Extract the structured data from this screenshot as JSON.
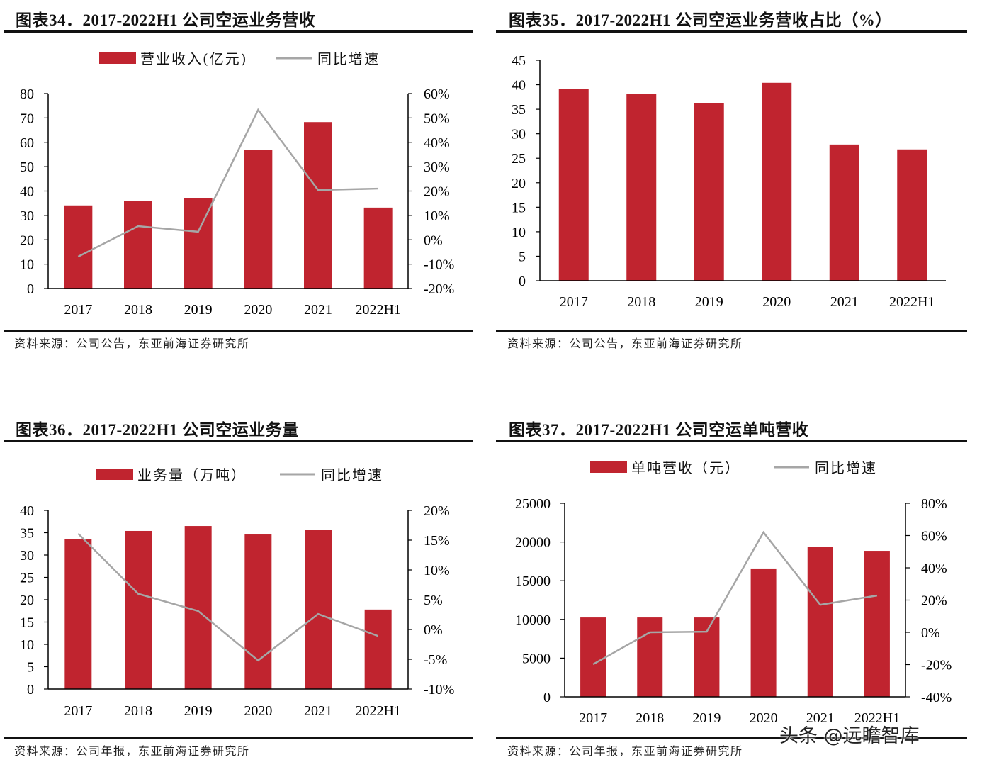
{
  "colors": {
    "bar": "#C0242F",
    "line": "#A6A6A6",
    "axis": "#000000"
  },
  "watermark": "头条 @远瞻智库",
  "chart_data": [
    {
      "id": "fig34",
      "type": "bar+line",
      "title": "图表34．2017-2022H1 公司空运业务营收",
      "source": "资料来源：公司公告，东亚前海证券研究所",
      "categories": [
        "2017",
        "2018",
        "2019",
        "2020",
        "2021",
        "2022H1"
      ],
      "series": [
        {
          "name": "营业收入(亿元)",
          "type": "bar",
          "axis": "left",
          "values": [
            34.1,
            35.8,
            37.2,
            57.0,
            68.3,
            33.2
          ]
        },
        {
          "name": "同比增速",
          "type": "line",
          "axis": "right",
          "values": [
            -6.9,
            5.6,
            3.3,
            53.3,
            20.4,
            21.0
          ]
        }
      ],
      "left_axis": {
        "ylim": [
          0,
          80
        ],
        "ticks": [
          "0",
          "10",
          "20",
          "30",
          "40",
          "50",
          "60",
          "70",
          "80"
        ]
      },
      "right_axis": {
        "ylim": [
          -20,
          60
        ],
        "unit": "%",
        "ticks": [
          "-20%",
          "-10%",
          "0%",
          "10%",
          "20%",
          "30%",
          "40%",
          "50%",
          "60%"
        ]
      },
      "legend": "top",
      "grid": false
    },
    {
      "id": "fig35",
      "type": "bar",
      "title": "图表35．2017-2022H1 公司空运业务营收占比（%）",
      "source": "资料来源：公司公告，东亚前海证券研究所",
      "categories": [
        "2017",
        "2018",
        "2019",
        "2020",
        "2021",
        "2022H1"
      ],
      "series": [
        {
          "type": "bar",
          "axis": "left",
          "values": [
            39.1,
            38.1,
            36.2,
            40.4,
            27.8,
            26.8
          ]
        }
      ],
      "left_axis": {
        "ylim": [
          0,
          45
        ],
        "ticks": [
          "0",
          "5",
          "10",
          "15",
          "20",
          "25",
          "30",
          "35",
          "40",
          "45"
        ]
      },
      "legend": "none",
      "grid": false
    },
    {
      "id": "fig36",
      "type": "bar+line",
      "title": "图表36．2017-2022H1 公司空运业务量",
      "source": "资料来源：公司年报，东亚前海证券研究所",
      "categories": [
        "2017",
        "2018",
        "2019",
        "2020",
        "2021",
        "2022H1"
      ],
      "series": [
        {
          "name": "业务量（万吨）",
          "type": "bar",
          "axis": "left",
          "values": [
            33.5,
            35.4,
            36.5,
            34.6,
            35.6,
            17.8
          ]
        },
        {
          "name": "同比增速",
          "type": "line",
          "axis": "right",
          "values": [
            16.1,
            6.0,
            3.1,
            -5.2,
            2.6,
            -1.1
          ]
        }
      ],
      "left_axis": {
        "ylim": [
          0,
          40
        ],
        "ticks": [
          "0",
          "5",
          "10",
          "15",
          "20",
          "25",
          "30",
          "35",
          "40"
        ]
      },
      "right_axis": {
        "ylim": [
          -10,
          20
        ],
        "unit": "%",
        "ticks": [
          "-10%",
          "-5%",
          "0%",
          "5%",
          "10%",
          "15%",
          "20%"
        ]
      },
      "legend": "top",
      "grid": false
    },
    {
      "id": "fig37",
      "type": "bar+line",
      "title": "图表37．2017-2022H1 公司空运单吨营收",
      "source": "资料来源：公司年报，东亚前海证券研究所",
      "categories": [
        "2017",
        "2018",
        "2019",
        "2020",
        "2021",
        "2022H1"
      ],
      "series": [
        {
          "name": "单吨营收（元）",
          "type": "bar",
          "axis": "left",
          "values": [
            10250,
            10250,
            10250,
            16580,
            19410,
            18860
          ]
        },
        {
          "name": "同比增速",
          "type": "line",
          "axis": "right",
          "values": [
            -19.8,
            0.0,
            0.4,
            62.0,
            17.1,
            22.8
          ]
        }
      ],
      "left_axis": {
        "ylim": [
          0,
          25000
        ],
        "ticks": [
          "0",
          "5000",
          "10000",
          "15000",
          "20000",
          "25000"
        ]
      },
      "right_axis": {
        "ylim": [
          -40,
          80
        ],
        "unit": "%",
        "ticks": [
          "-40%",
          "-20%",
          "0%",
          "20%",
          "40%",
          "60%",
          "80%"
        ]
      },
      "legend": "top",
      "grid": false
    }
  ]
}
